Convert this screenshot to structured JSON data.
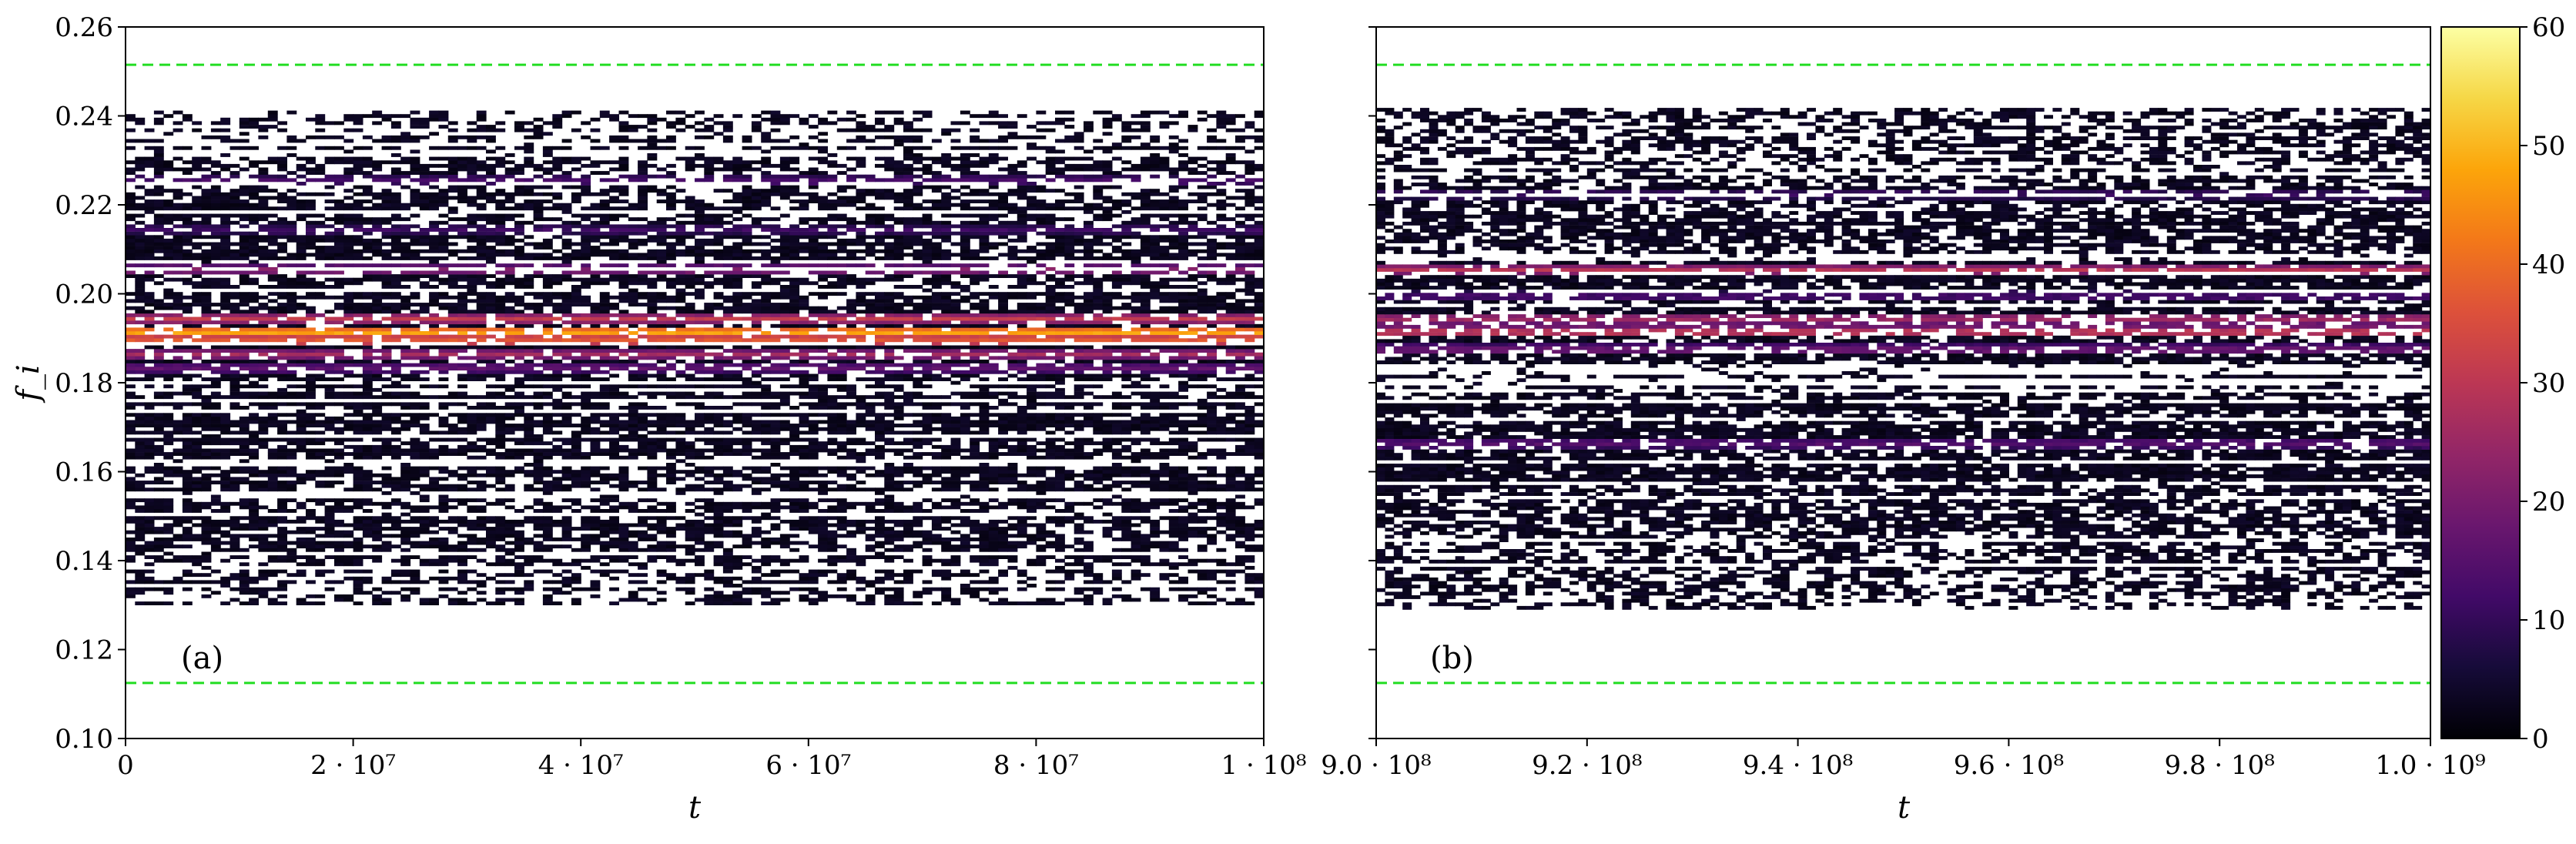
{
  "chart_data": {
    "type": "heatmap",
    "panels": [
      {
        "id": "a",
        "tag": "(a)",
        "xlabel": "t",
        "ylabel": "f_i",
        "xlim": [
          0,
          100000000
        ],
        "ylim": [
          0.1,
          0.26
        ],
        "xticks": [
          {
            "value": 0,
            "label": "0"
          },
          {
            "value": 20000000,
            "label": "2 · 10⁷"
          },
          {
            "value": 40000000,
            "label": "4 · 10⁷"
          },
          {
            "value": 60000000,
            "label": "6 · 10⁷"
          },
          {
            "value": 80000000,
            "label": "8 · 10⁷"
          },
          {
            "value": 100000000,
            "label": "1 · 10⁸"
          }
        ],
        "yticks": [
          {
            "value": 0.1,
            "label": "0.10"
          },
          {
            "value": 0.12,
            "label": "0.12"
          },
          {
            "value": 0.14,
            "label": "0.14"
          },
          {
            "value": 0.16,
            "label": "0.16"
          },
          {
            "value": 0.18,
            "label": "0.18"
          },
          {
            "value": 0.2,
            "label": "0.20"
          },
          {
            "value": 0.22,
            "label": "0.22"
          },
          {
            "value": 0.24,
            "label": "0.24"
          },
          {
            "value": 0.26,
            "label": "0.26"
          }
        ],
        "bounds": [
          0.1125,
          0.2515
        ],
        "occupied_range": [
          0.13,
          0.241
        ],
        "peak_bands": [
          {
            "f": 0.191,
            "intensity": 50
          },
          {
            "f": 0.189,
            "intensity": 38
          },
          {
            "f": 0.186,
            "intensity": 25
          },
          {
            "f": 0.194,
            "intensity": 30
          },
          {
            "f": 0.205,
            "intensity": 22
          },
          {
            "f": 0.183,
            "intensity": 16
          },
          {
            "f": 0.225,
            "intensity": 12
          },
          {
            "f": 0.214,
            "intensity": 10
          }
        ]
      },
      {
        "id": "b",
        "tag": "(b)",
        "xlabel": "t",
        "xlim": [
          900000000,
          1000000000
        ],
        "ylim": [
          0.1,
          0.26
        ],
        "xticks": [
          {
            "value": 900000000,
            "label": "9.0 · 10⁸"
          },
          {
            "value": 920000000,
            "label": "9.2 · 10⁸"
          },
          {
            "value": 940000000,
            "label": "9.4 · 10⁸"
          },
          {
            "value": 960000000,
            "label": "9.6 · 10⁸"
          },
          {
            "value": 980000000,
            "label": "9.8 · 10⁸"
          },
          {
            "value": 1000000000,
            "label": "1.0 · 10⁹"
          }
        ],
        "bounds": [
          0.1125,
          0.2515
        ],
        "occupied_range": [
          0.129,
          0.241
        ],
        "peak_bands": [
          {
            "f": 0.191,
            "intensity": 32
          },
          {
            "f": 0.194,
            "intensity": 26
          },
          {
            "f": 0.205,
            "intensity": 28
          },
          {
            "f": 0.187,
            "intensity": 18
          },
          {
            "f": 0.166,
            "intensity": 14
          },
          {
            "f": 0.222,
            "intensity": 10
          },
          {
            "f": 0.199,
            "intensity": 12
          }
        ]
      }
    ],
    "colorbar": {
      "colormap": "inferno",
      "range": [
        0,
        60
      ],
      "ticks": [
        {
          "value": 0,
          "label": "0"
        },
        {
          "value": 10,
          "label": "10"
        },
        {
          "value": 20,
          "label": "20"
        },
        {
          "value": 30,
          "label": "30"
        },
        {
          "value": 40,
          "label": "40"
        },
        {
          "value": 50,
          "label": "50"
        },
        {
          "value": 60,
          "label": "60"
        }
      ]
    },
    "bound_line_color": "#22dd22",
    "grid": false,
    "legend": "none"
  }
}
